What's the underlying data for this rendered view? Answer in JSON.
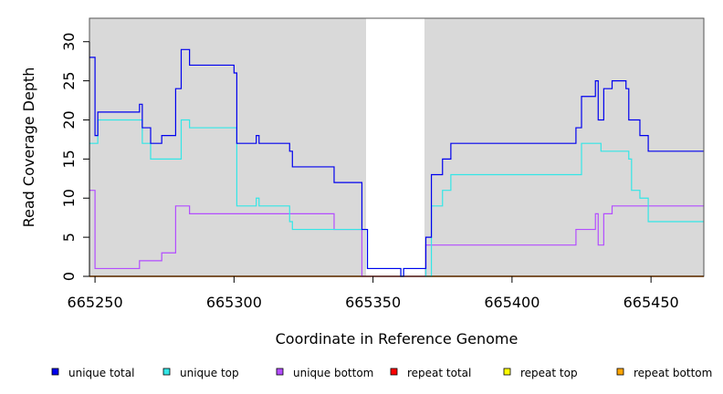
{
  "chart_data": {
    "type": "line",
    "step": true,
    "xlabel": "Coordinate in Reference Genome",
    "ylabel": "Read Coverage Depth",
    "xlim": [
      665248,
      665469
    ],
    "ylim": [
      0,
      33
    ],
    "x_ticks": [
      665250,
      665300,
      665350,
      665400,
      665450
    ],
    "y_ticks": [
      0,
      5,
      10,
      15,
      20,
      25,
      30
    ],
    "grid": false,
    "background_color": "#d9d9d9",
    "shaded_regions": [
      {
        "from": 665248,
        "to": 665347.5,
        "color": "#d9d9d9"
      },
      {
        "from": 665368.5,
        "to": 665469,
        "color": "#d9d9d9"
      }
    ],
    "legend_position": "bottom",
    "series": [
      {
        "name": "unique total",
        "color": "#0000ee",
        "points": [
          [
            665248,
            28
          ],
          [
            665250,
            18
          ],
          [
            665251,
            21
          ],
          [
            665266,
            22
          ],
          [
            665267,
            19
          ],
          [
            665270,
            17
          ],
          [
            665274,
            18
          ],
          [
            665279,
            24
          ],
          [
            665281,
            29
          ],
          [
            665284,
            27
          ],
          [
            665300,
            26
          ],
          [
            665301,
            17
          ],
          [
            665308,
            18
          ],
          [
            665309,
            17
          ],
          [
            665320,
            16
          ],
          [
            665321,
            14
          ],
          [
            665336,
            12
          ],
          [
            665346,
            6
          ],
          [
            665348,
            1
          ],
          [
            665360,
            0
          ],
          [
            665361,
            1
          ],
          [
            665369,
            5
          ],
          [
            665371,
            13
          ],
          [
            665375,
            15
          ],
          [
            665378,
            17
          ],
          [
            665423,
            19
          ],
          [
            665425,
            23
          ],
          [
            665430,
            25
          ],
          [
            665431,
            20
          ],
          [
            665433,
            24
          ],
          [
            665436,
            25
          ],
          [
            665441,
            24
          ],
          [
            665442,
            20
          ],
          [
            665446,
            18
          ],
          [
            665449,
            16
          ],
          [
            665469,
            16
          ]
        ]
      },
      {
        "name": "unique top",
        "color": "#33e6e6",
        "points": [
          [
            665248,
            17
          ],
          [
            665251,
            20
          ],
          [
            665267,
            17
          ],
          [
            665270,
            15
          ],
          [
            665281,
            20
          ],
          [
            665284,
            19
          ],
          [
            665301,
            9
          ],
          [
            665308,
            10
          ],
          [
            665309,
            9
          ],
          [
            665320,
            7
          ],
          [
            665321,
            6
          ],
          [
            665348,
            1
          ],
          [
            665360,
            0
          ],
          [
            665361,
            1
          ],
          [
            665369,
            0
          ],
          [
            665371,
            9
          ],
          [
            665375,
            11
          ],
          [
            665378,
            13
          ],
          [
            665425,
            17
          ],
          [
            665432,
            16
          ],
          [
            665442,
            15
          ],
          [
            665443,
            11
          ],
          [
            665446,
            10
          ],
          [
            665449,
            7
          ],
          [
            665469,
            7
          ]
        ]
      },
      {
        "name": "unique bottom",
        "color": "#b34dff",
        "points": [
          [
            665248,
            11
          ],
          [
            665250,
            1
          ],
          [
            665266,
            2
          ],
          [
            665274,
            3
          ],
          [
            665279,
            9
          ],
          [
            665284,
            8
          ],
          [
            665336,
            6
          ],
          [
            665346,
            0
          ],
          [
            665369,
            4
          ],
          [
            665423,
            6
          ],
          [
            665430,
            8
          ],
          [
            665431,
            4
          ],
          [
            665433,
            8
          ],
          [
            665436,
            9
          ],
          [
            665469,
            9
          ]
        ]
      },
      {
        "name": "repeat total",
        "color": "#ff0000",
        "points": [
          [
            665248,
            0
          ],
          [
            665469,
            0
          ]
        ]
      },
      {
        "name": "repeat top",
        "color": "#ffff00",
        "points": [
          [
            665248,
            0
          ],
          [
            665469,
            0
          ]
        ]
      },
      {
        "name": "repeat bottom",
        "color": "#ffa500",
        "points": [
          [
            665248,
            0
          ],
          [
            665469,
            0
          ]
        ]
      }
    ]
  }
}
